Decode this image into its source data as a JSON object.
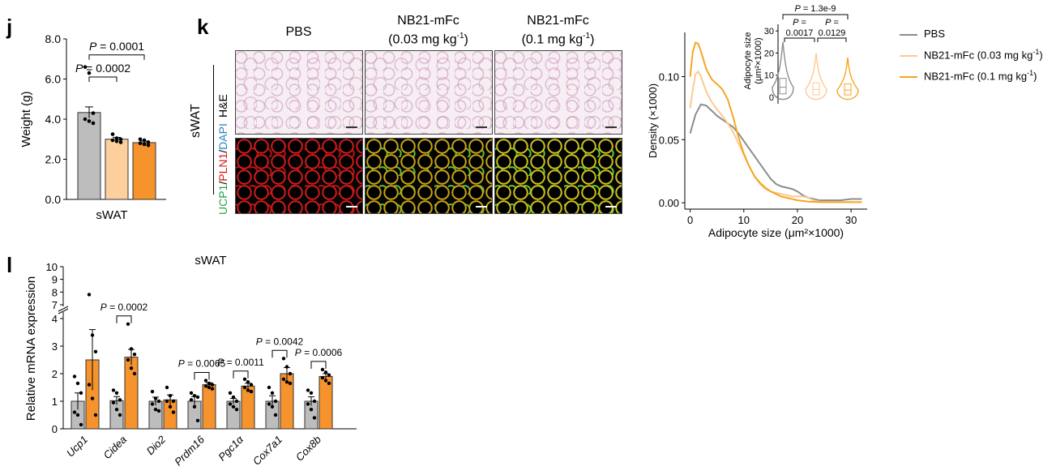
{
  "panel_j": {
    "letter": "j",
    "chart_data": {
      "type": "bar",
      "categories": [
        "PBS",
        "NB21-mFc (0.03 mg kg⁻¹)",
        "NB21-mFc (0.1 mg kg⁻¹)"
      ],
      "values": [
        4.33,
        3.0,
        2.83
      ],
      "errors": [
        0.28,
        0.09,
        0.08
      ],
      "points": [
        [
          6.6,
          6.3,
          4.3,
          4.0,
          3.9,
          3.8
        ],
        [
          3.25,
          3.05,
          3.0,
          2.95,
          2.9,
          2.85
        ],
        [
          3.0,
          2.95,
          2.85,
          2.8,
          2.75,
          2.7
        ]
      ],
      "colors": [
        "#bdbdbd",
        "#fdcf9c",
        "#f7932d"
      ],
      "ylabel": "Weight (g)",
      "xlabel": "sWAT",
      "yticks": [
        "0.0",
        "2.0",
        "4.0",
        "6.0",
        "8.0"
      ],
      "ylim": [
        0,
        8
      ],
      "annotations": [
        {
          "label_p": "P",
          "label_rest": " = 0.0001",
          "from": 0,
          "to": 2
        },
        {
          "label_p": "P",
          "label_rest": " = 0.0002",
          "from": 0,
          "to": 1
        }
      ]
    }
  },
  "panel_k": {
    "letter": "k",
    "column_headers": [
      {
        "line1": "PBS",
        "line2": ""
      },
      {
        "line1": "NB21-mFc",
        "line2": "(0.03 mg kg",
        "sup": "-1",
        "close": ")"
      },
      {
        "line1": "NB21-mFc",
        "line2": "(0.1 mg kg",
        "sup": "-1",
        "close": ")"
      }
    ],
    "row_group_label": "sWAT",
    "row_label_he": "H&E",
    "row_label_fluor": [
      {
        "text": "UCP1",
        "color": "#2aa24a"
      },
      {
        "text": "/",
        "color": "#000000"
      },
      {
        "text": "PLN1",
        "color": "#d7191c"
      },
      {
        "text": "/",
        "color": "#000000"
      },
      {
        "text": "DAPI",
        "color": "#2b83ba"
      }
    ]
  },
  "density_chart": {
    "chart_data": {
      "type": "line",
      "xlabel": "Adipocyte size (μm²×1000)",
      "ylabel": "Density (×1000)",
      "xticks": [
        "0",
        "10",
        "20",
        "30"
      ],
      "yticks": [
        "0.00",
        "0.05",
        "0.10"
      ],
      "xlim": [
        -1,
        33
      ],
      "ylim": [
        -0.005,
        0.135
      ],
      "series": [
        {
          "name": "PBS",
          "color": "#8c8c8c",
          "x": [
            0,
            1,
            2,
            3,
            4,
            5,
            6,
            7,
            8,
            9,
            10,
            11,
            12,
            13,
            14,
            15,
            16,
            17,
            18,
            19,
            20,
            21,
            22,
            23,
            24,
            26,
            28,
            30,
            32
          ],
          "y": [
            0.055,
            0.07,
            0.078,
            0.077,
            0.073,
            0.069,
            0.066,
            0.063,
            0.06,
            0.055,
            0.049,
            0.043,
            0.037,
            0.031,
            0.025,
            0.019,
            0.015,
            0.013,
            0.012,
            0.011,
            0.009,
            0.006,
            0.004,
            0.003,
            0.002,
            0.002,
            0.002,
            0.003,
            0.003
          ]
        },
        {
          "name": "NB21-mFc (0.03 mg kg⁻¹)",
          "color": "#fdc98f",
          "x": [
            0,
            0.5,
            1,
            1.5,
            2,
            3,
            4,
            5,
            6,
            7,
            8,
            9,
            10,
            11,
            12,
            13,
            14,
            15,
            16,
            17,
            18,
            19,
            20,
            21,
            22,
            23,
            24,
            26,
            28,
            30,
            32
          ],
          "y": [
            0.075,
            0.09,
            0.102,
            0.104,
            0.1,
            0.088,
            0.08,
            0.074,
            0.069,
            0.063,
            0.056,
            0.047,
            0.038,
            0.029,
            0.021,
            0.015,
            0.011,
            0.009,
            0.008,
            0.007,
            0.006,
            0.005,
            0.005,
            0.005,
            0.004,
            0.002,
            0.001,
            0.0005,
            0.0005,
            0.0005,
            0.0005
          ]
        },
        {
          "name": "NB21-mFc (0.1 mg kg⁻¹)",
          "color": "#f5a623",
          "x": [
            0,
            0.5,
            1,
            1.5,
            2,
            3,
            4,
            5,
            6,
            7,
            8,
            9,
            10,
            11,
            12,
            13,
            14,
            15,
            16,
            17,
            18,
            19,
            20,
            21,
            22,
            24,
            26,
            28,
            30,
            32
          ],
          "y": [
            0.1,
            0.12,
            0.127,
            0.126,
            0.12,
            0.106,
            0.098,
            0.094,
            0.09,
            0.082,
            0.068,
            0.052,
            0.039,
            0.029,
            0.021,
            0.016,
            0.012,
            0.009,
            0.007,
            0.005,
            0.004,
            0.003,
            0.002,
            0.0015,
            0.001,
            0.0005,
            0.0005,
            0.0005,
            0.0005,
            0.0005
          ]
        }
      ],
      "legend": {
        "placement": "right-outside",
        "items": [
          {
            "text": "PBS",
            "sup": "",
            "close": "",
            "color": "#8c8c8c"
          },
          {
            "text": "NB21-mFc (0.03 mg kg",
            "sup": "-1",
            "close": ")",
            "color": "#fdc98f"
          },
          {
            "text": "NB21-mFc (0.1 mg kg",
            "sup": "-1",
            "close": ")",
            "color": "#f5a623"
          }
        ]
      }
    }
  },
  "violin_inset": {
    "chart_data": {
      "type": "violin",
      "ylabel_line1": "Adipocyte size",
      "ylabel_line2": "(μm²×1000)",
      "yticks": [
        "0",
        "10",
        "20",
        "30"
      ],
      "ylim": [
        -3,
        33
      ],
      "groups": [
        {
          "name": "PBS",
          "color": "#8c8c8c",
          "median": 4.5,
          "q1": 1.5,
          "q3": 8.5,
          "min": -1,
          "max": 25
        },
        {
          "name": "NB21-mFc (0.03 mg kg⁻¹)",
          "color": "#fdc98f",
          "median": 3.5,
          "q1": 1.0,
          "q3": 6.5,
          "min": -1,
          "max": 20
        },
        {
          "name": "NB21-mFc (0.1 mg kg⁻¹)",
          "color": "#f5a623",
          "median": 3.2,
          "q1": 1.0,
          "q3": 6.0,
          "min": -1,
          "max": 18
        }
      ],
      "annotations": [
        {
          "p": "P",
          "rest": " = 1.3e-9",
          "from": 0,
          "to": 2
        },
        {
          "p": "P",
          "rest": " =",
          "value": "0.0017",
          "from": 0,
          "to": 1
        },
        {
          "p": "P",
          "rest": " =",
          "value": "0.0129",
          "from": 1,
          "to": 2
        }
      ]
    }
  },
  "panel_l": {
    "letter": "l",
    "title": "sWAT",
    "chart_data": {
      "type": "bar",
      "ylabel": "Relative mRNA expression",
      "yticks_lower": [
        "0",
        "1",
        "2",
        "3",
        "4"
      ],
      "yticks_upper": [
        "7",
        "8",
        "9",
        "10"
      ],
      "categories": [
        "Ucp1",
        "Cidea",
        "Dio2",
        "Prdm16",
        "Pgc1α",
        "Cox7a1",
        "Cox8b"
      ],
      "series": [
        {
          "name": "PBS",
          "color": "#bdbdbd",
          "values": [
            1.0,
            1.02,
            1.0,
            1.0,
            1.0,
            1.0,
            1.0
          ],
          "errors": [
            0.3,
            0.15,
            0.15,
            0.17,
            0.1,
            0.2,
            0.16
          ],
          "points": [
            [
              1.9,
              1.65,
              1.3,
              0.6,
              0.5,
              0.15
            ],
            [
              1.4,
              1.3,
              1.05,
              0.95,
              0.7,
              0.5
            ],
            [
              1.35,
              1.1,
              1.0,
              0.9,
              0.7,
              0.65
            ],
            [
              1.3,
              1.2,
              1.15,
              1.05,
              0.8,
              0.3
            ],
            [
              1.3,
              1.15,
              1.0,
              0.9,
              0.8,
              0.7
            ],
            [
              1.5,
              1.3,
              1.0,
              0.9,
              0.8,
              0.5
            ],
            [
              1.4,
              1.3,
              1.0,
              0.9,
              0.7,
              0.4
            ]
          ]
        },
        {
          "name": "NB21-mFc",
          "color": "#f7932d",
          "values": [
            2.5,
            2.6,
            1.05,
            1.6,
            1.55,
            2.0,
            1.9
          ],
          "errors": [
            1.1,
            0.28,
            0.18,
            0.07,
            0.1,
            0.22,
            0.1
          ],
          "points": [
            [
              7.8,
              3.4,
              2.8,
              1.6,
              1.1,
              0.5
            ],
            [
              3.8,
              2.9,
              2.7,
              2.5,
              2.2,
              2.0
            ],
            [
              1.5,
              1.2,
              1.0,
              1.0,
              0.8,
              0.6
            ],
            [
              1.75,
              1.65,
              1.6,
              1.55,
              1.5,
              1.45
            ],
            [
              1.8,
              1.7,
              1.6,
              1.5,
              1.4,
              1.35
            ],
            [
              2.55,
              2.25,
              2.0,
              1.8,
              1.7,
              1.65
            ],
            [
              2.15,
              2.05,
              1.95,
              1.85,
              1.75,
              1.65
            ]
          ]
        }
      ],
      "annotations": [
        {
          "index": 1,
          "p": "P",
          "rest": " = 0.0002"
        },
        {
          "index": 3,
          "p": "P",
          "rest": " = 0.0065"
        },
        {
          "index": 4,
          "p": "P",
          "rest": " = 0.0011"
        },
        {
          "index": 5,
          "p": "P",
          "rest": " = 0.0042"
        },
        {
          "index": 6,
          "p": "P",
          "rest": " = 0.0006"
        }
      ]
    }
  }
}
